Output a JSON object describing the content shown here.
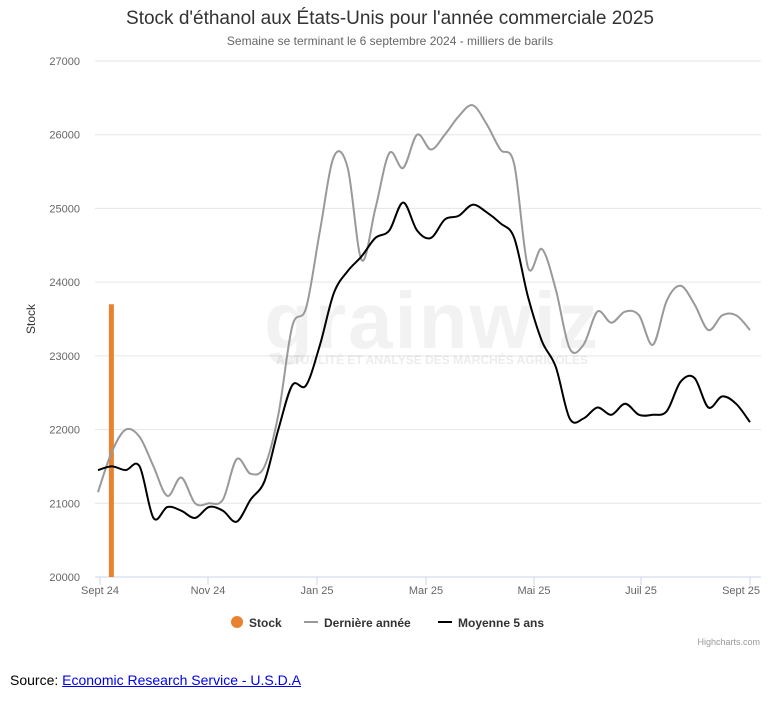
{
  "chart_data": {
    "type": "line",
    "title": "Stock d'éthanol aux États-Unis pour l'année commerciale 2025",
    "subtitle": "Semaine se terminant le 6 septembre 2024 - milliers de barils",
    "ylabel": "Stock",
    "ylim": [
      20000,
      27000
    ],
    "yticks": [
      20000,
      21000,
      22000,
      23000,
      24000,
      25000,
      26000,
      27000
    ],
    "xticks": [
      "Sept 24",
      "Nov 24",
      "Jan 25",
      "Mar 25",
      "Mai 25",
      "Juil 25",
      "Sept 25"
    ],
    "grid": true,
    "legend_position": "bottom",
    "series": [
      {
        "name": "Stock",
        "type": "bar",
        "color": "#e8822e",
        "values": [
          {
            "week": 1,
            "y": 23700
          }
        ]
      },
      {
        "name": "Dernière année",
        "color": "#999999",
        "values": [
          [
            0,
            21150
          ],
          [
            1,
            21700
          ],
          [
            2,
            22000
          ],
          [
            3,
            21900
          ],
          [
            4,
            21500
          ],
          [
            5,
            21100
          ],
          [
            6,
            21350
          ],
          [
            7,
            21000
          ],
          [
            8,
            21000
          ],
          [
            9,
            21050
          ],
          [
            10,
            21600
          ],
          [
            11,
            21400
          ],
          [
            12,
            21500
          ],
          [
            13,
            22200
          ],
          [
            14,
            23400
          ],
          [
            15,
            23650
          ],
          [
            16,
            24700
          ],
          [
            17,
            25700
          ],
          [
            18,
            25550
          ],
          [
            19,
            24300
          ],
          [
            20,
            25000
          ],
          [
            21,
            25750
          ],
          [
            22,
            25550
          ],
          [
            23,
            26000
          ],
          [
            24,
            25800
          ],
          [
            25,
            26000
          ],
          [
            26,
            26250
          ],
          [
            27,
            26400
          ],
          [
            28,
            26150
          ],
          [
            29,
            25800
          ],
          [
            30,
            25600
          ],
          [
            31,
            24200
          ],
          [
            32,
            24450
          ],
          [
            33,
            23900
          ],
          [
            34,
            23100
          ],
          [
            35,
            23150
          ],
          [
            36,
            23600
          ],
          [
            37,
            23450
          ],
          [
            38,
            23600
          ],
          [
            39,
            23550
          ],
          [
            40,
            23150
          ],
          [
            41,
            23750
          ],
          [
            42,
            23950
          ],
          [
            43,
            23700
          ],
          [
            44,
            23350
          ],
          [
            45,
            23550
          ],
          [
            46,
            23550
          ],
          [
            47,
            23350
          ]
        ]
      },
      {
        "name": "Moyenne 5 ans",
        "color": "#000000",
        "values": [
          [
            0,
            21450
          ],
          [
            1,
            21500
          ],
          [
            2,
            21450
          ],
          [
            3,
            21500
          ],
          [
            4,
            20800
          ],
          [
            5,
            20950
          ],
          [
            6,
            20900
          ],
          [
            7,
            20800
          ],
          [
            8,
            20950
          ],
          [
            9,
            20900
          ],
          [
            10,
            20750
          ],
          [
            11,
            21050
          ],
          [
            12,
            21300
          ],
          [
            13,
            22000
          ],
          [
            14,
            22600
          ],
          [
            15,
            22600
          ],
          [
            16,
            23150
          ],
          [
            17,
            23850
          ],
          [
            18,
            24150
          ],
          [
            19,
            24350
          ],
          [
            20,
            24600
          ],
          [
            21,
            24700
          ],
          [
            22,
            25080
          ],
          [
            23,
            24700
          ],
          [
            24,
            24600
          ],
          [
            25,
            24850
          ],
          [
            26,
            24900
          ],
          [
            27,
            25050
          ],
          [
            28,
            24950
          ],
          [
            29,
            24800
          ],
          [
            30,
            24600
          ],
          [
            31,
            23800
          ],
          [
            32,
            23200
          ],
          [
            33,
            22850
          ],
          [
            34,
            22150
          ],
          [
            35,
            22150
          ],
          [
            36,
            22300
          ],
          [
            37,
            22200
          ],
          [
            38,
            22350
          ],
          [
            39,
            22200
          ],
          [
            40,
            22200
          ],
          [
            41,
            22250
          ],
          [
            42,
            22650
          ],
          [
            43,
            22700
          ],
          [
            44,
            22300
          ],
          [
            45,
            22450
          ],
          [
            46,
            22350
          ],
          [
            47,
            22100
          ]
        ]
      }
    ]
  },
  "watermark": {
    "logo": "grainwiz",
    "tagline": "ACTUALITÉ ET ANALYSE DES MARCHÉS AGRICOLES"
  },
  "credits": "Highcharts.com",
  "source": {
    "label": "Source:",
    "link_text": "Economic Research Service - U.S.D.A"
  }
}
